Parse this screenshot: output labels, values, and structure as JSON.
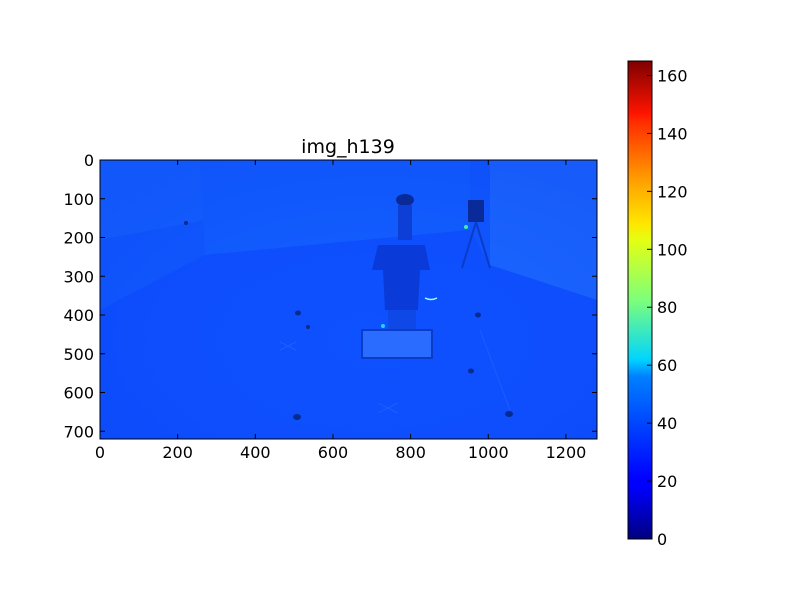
{
  "chart_data": [
    {
      "type": "heatmap",
      "title": "img_h139",
      "xlabel": "",
      "ylabel": "",
      "xlim": [
        0,
        1280
      ],
      "ylim": [
        720,
        0
      ],
      "xticks": [
        0,
        200,
        400,
        600,
        800,
        1000,
        1200
      ],
      "yticks": [
        0,
        100,
        200,
        300,
        400,
        500,
        600,
        700
      ],
      "grid": false,
      "colormap": "jet",
      "description_values": "image intensities mostly around 20-30 (blue), a few small bright spots near 40-50",
      "objects": [
        {
          "label": "person",
          "x": 790,
          "y": 300
        },
        {
          "label": "robot-base",
          "x": 780,
          "y": 470
        },
        {
          "label": "tripod-right",
          "x": 960,
          "y": 210
        },
        {
          "label": "marker",
          "x": 510,
          "y": 665
        },
        {
          "label": "marker",
          "x": 1060,
          "y": 655
        },
        {
          "label": "marker",
          "x": 960,
          "y": 540
        },
        {
          "label": "marker",
          "x": 510,
          "y": 400
        },
        {
          "label": "marker",
          "x": 955,
          "y": 400
        },
        {
          "label": "marker",
          "x": 220,
          "y": 160
        }
      ]
    },
    {
      "type": "colorbar",
      "range": [
        0,
        165
      ],
      "ticks": [
        0,
        20,
        40,
        60,
        80,
        100,
        120,
        140,
        160
      ],
      "colormap": "jet"
    }
  ],
  "colors": {
    "frame": "#000000",
    "background": "#ffffff",
    "image_base": "#0f5aff"
  }
}
